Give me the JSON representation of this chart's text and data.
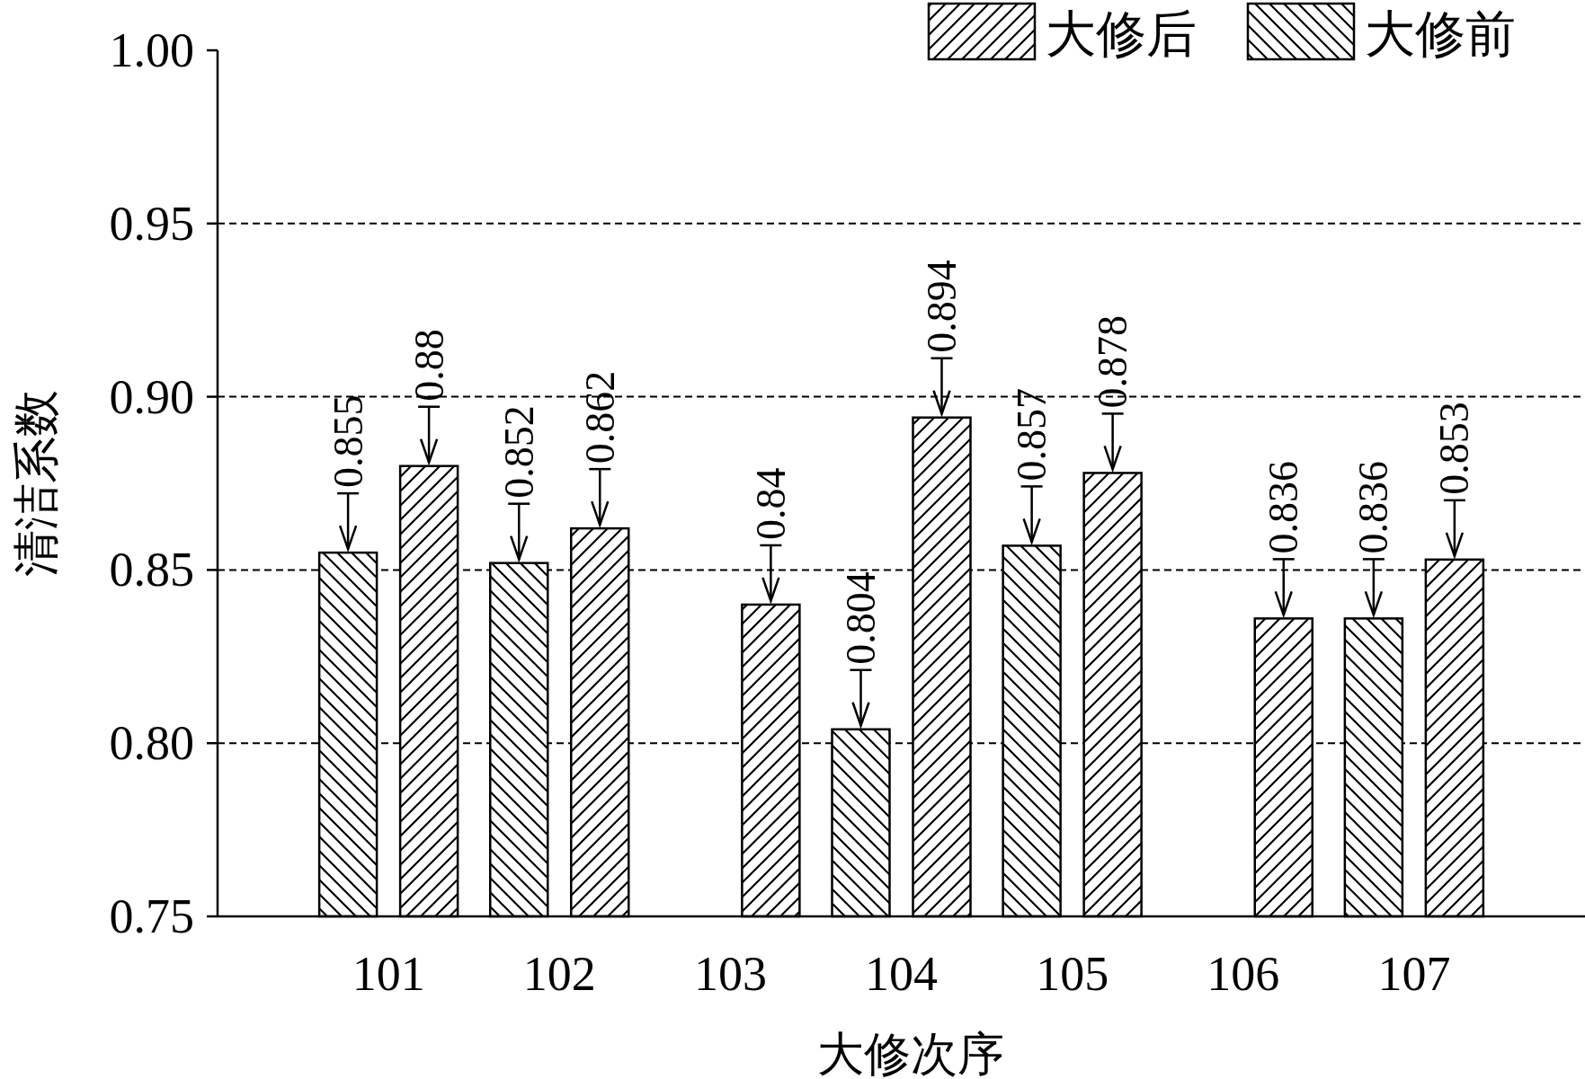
{
  "chart_data": {
    "type": "bar",
    "xlabel": "大修次序",
    "ylabel": "清洁系数",
    "categories": [
      "101",
      "102",
      "103",
      "104",
      "105",
      "106",
      "107"
    ],
    "series": [
      {
        "name": "大修前",
        "color": "#000000",
        "values": [
          0.855,
          0.852,
          null,
          0.804,
          0.857,
          null,
          0.836
        ]
      },
      {
        "name": "大修后",
        "color": "#000000",
        "values": [
          0.88,
          0.862,
          0.84,
          0.894,
          0.878,
          0.836,
          0.853
        ]
      }
    ],
    "ylim": [
      0.75,
      1.0
    ],
    "yticks": [
      {
        "value": 0.75,
        "label": "0.75"
      },
      {
        "value": 0.8,
        "label": "0.80"
      },
      {
        "value": 0.85,
        "label": "0.85"
      },
      {
        "value": 0.9,
        "label": "0.90"
      },
      {
        "value": 0.95,
        "label": "0.95"
      },
      {
        "value": 1.0,
        "label": "1.00"
      }
    ],
    "grid": "y",
    "legend": "top right",
    "data_labels": true
  }
}
